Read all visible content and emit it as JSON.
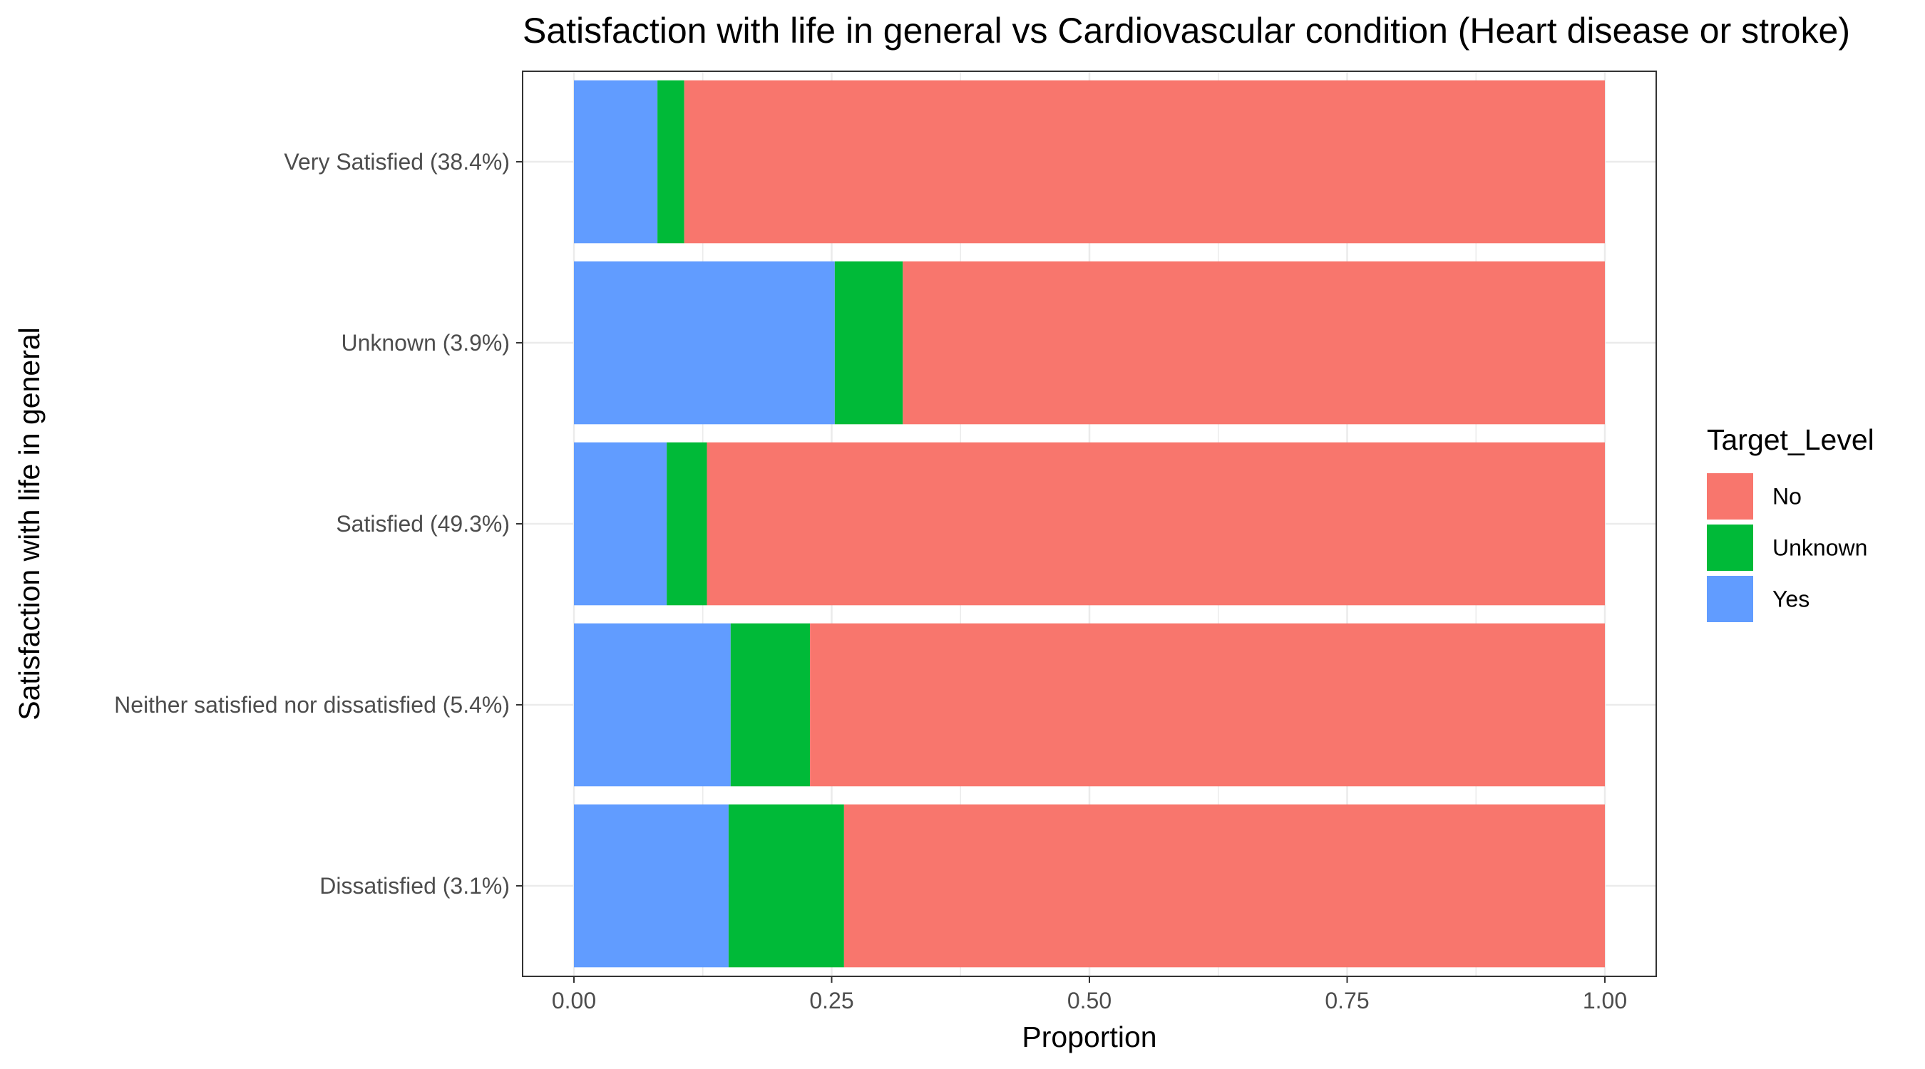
{
  "chart_data": {
    "type": "bar",
    "orientation": "horizontal",
    "stacked": true,
    "title": "Satisfaction with life in general  vs Cardiovascular condition (Heart disease or stroke)",
    "xlabel": "Proportion",
    "ylabel": "Satisfaction with life in general",
    "xlim": [
      0,
      1
    ],
    "xticks": [
      "0.00",
      "0.25",
      "0.50",
      "0.75",
      "1.00"
    ],
    "grid": true,
    "legend_position": "right",
    "categories": [
      "Very Satisfied (38.4%)",
      "Unknown (3.9%)",
      "Satisfied (49.3%)",
      "Neither satisfied nor dissatisfied (5.4%)",
      "Dissatisfied (3.1%)"
    ],
    "series": [
      {
        "name": "Yes",
        "color": "#619CFF",
        "values": [
          0.081,
          0.253,
          0.09,
          0.152,
          0.15
        ]
      },
      {
        "name": "Unknown",
        "color": "#00BA38",
        "values": [
          0.026,
          0.066,
          0.039,
          0.077,
          0.112
        ]
      },
      {
        "name": "No",
        "color": "#F8766D",
        "values": [
          0.893,
          0.681,
          0.871,
          0.771,
          0.738
        ]
      }
    ],
    "legend": {
      "title": "Target_Level",
      "entries": [
        {
          "label": "No",
          "color": "#F8766D"
        },
        {
          "label": "Unknown",
          "color": "#00BA38"
        },
        {
          "label": "Yes",
          "color": "#619CFF"
        }
      ]
    }
  }
}
